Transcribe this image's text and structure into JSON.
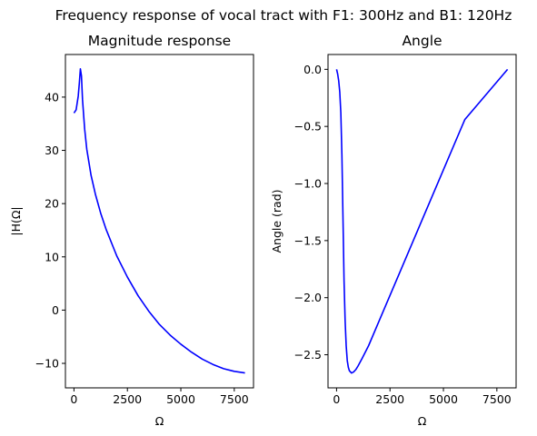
{
  "figure": {
    "suptitle": "Frequency response of vocal tract with F1: 300Hz and B1: 120Hz"
  },
  "chart_data": [
    {
      "type": "line",
      "title": "Magnitude response",
      "xlabel": "Ω",
      "ylabel": "|H(Ω|",
      "xlim": [
        -400,
        8400
      ],
      "ylim": [
        -14.6,
        48.0
      ],
      "xticks": [
        0,
        2500,
        5000,
        7500
      ],
      "xtick_labels": [
        "0",
        "2500",
        "5000",
        "7500"
      ],
      "yticks": [
        -10,
        0,
        10,
        20,
        30,
        40
      ],
      "ytick_labels": [
        "−10",
        "0",
        "10",
        "20",
        "30",
        "40"
      ],
      "grid": false,
      "series": [
        {
          "color": "#0000ff",
          "x": [
            0,
            100,
            200,
            250,
            300,
            350,
            400,
            500,
            600,
            800,
            1000,
            1250,
            1500,
            2000,
            2500,
            3000,
            3500,
            4000,
            4500,
            5000,
            5500,
            6000,
            6500,
            7000,
            7500,
            8000
          ],
          "y": [
            37.0,
            37.6,
            40.2,
            42.6,
            45.3,
            44.0,
            39.5,
            34.0,
            30.2,
            25.3,
            21.8,
            18.2,
            15.2,
            10.2,
            6.2,
            2.7,
            -0.2,
            -2.7,
            -4.7,
            -6.4,
            -7.9,
            -9.2,
            -10.2,
            -11.0,
            -11.5,
            -11.8
          ]
        }
      ]
    },
    {
      "type": "line",
      "title": "Angle",
      "xlabel": "Ω",
      "ylabel": "Angle (rad)",
      "xlim": [
        -400,
        8400
      ],
      "ylim": [
        -2.79,
        0.13
      ],
      "xticks": [
        0,
        2500,
        5000,
        7500
      ],
      "xtick_labels": [
        "0",
        "2500",
        "5000",
        "7500"
      ],
      "yticks": [
        0.0,
        -0.5,
        -1.0,
        -1.5,
        -2.0,
        -2.5
      ],
      "ytick_labels": [
        "0.0",
        "−0.5",
        "−1.0",
        "−1.5",
        "−2.0",
        "−2.5"
      ],
      "grid": false,
      "series": [
        {
          "color": "#0000ff",
          "x": [
            0,
            50,
            100,
            150,
            200,
            250,
            300,
            350,
            400,
            450,
            500,
            550,
            600,
            700,
            800,
            900,
            1000,
            1200,
            1500,
            2000,
            2500,
            3000,
            4000,
            5000,
            6000,
            7000,
            8000
          ],
          "y": [
            0.0,
            -0.04,
            -0.1,
            -0.2,
            -0.38,
            -0.75,
            -1.3,
            -1.85,
            -2.2,
            -2.42,
            -2.55,
            -2.61,
            -2.64,
            -2.66,
            -2.65,
            -2.63,
            -2.6,
            -2.53,
            -2.42,
            -2.2,
            -1.98,
            -1.76,
            -1.32,
            -0.88,
            -0.44,
            -0.22,
            0.0
          ]
        }
      ]
    }
  ]
}
